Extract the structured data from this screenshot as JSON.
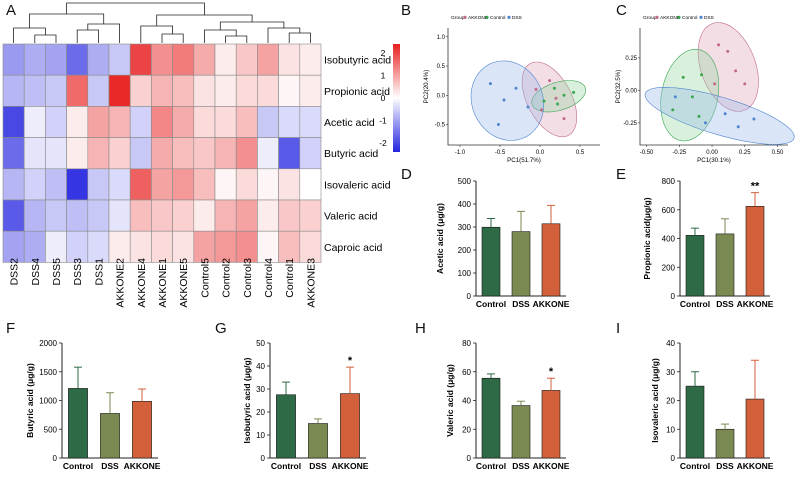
{
  "panel_labels": {
    "A": "A",
    "B": "B",
    "C": "C",
    "D": "D",
    "E": "E",
    "F": "F",
    "G": "G",
    "H": "H",
    "I": "I"
  },
  "colors": {
    "control": "#2d6a45",
    "dss": "#7a8a52",
    "akkone": "#d2603a",
    "heat_high": "#e81f1f",
    "heat_mid": "#ffffff",
    "heat_low": "#2323e0",
    "group_akkone": "#e0a0b8",
    "group_control": "#8fd49a",
    "group_dss": "#96b8e8"
  },
  "chart_data": [
    {
      "id": "A",
      "type": "heatmap",
      "columns": [
        "DSS2",
        "DSS4",
        "DSS5",
        "DSS3",
        "DSS1",
        "AKKONE2",
        "AKKONE4",
        "AKKONE1",
        "AKKONE5",
        "Control5",
        "Control2",
        "Control3",
        "Control4",
        "Control1",
        "AKKONE3"
      ],
      "rows": [
        "Isobutyric acid",
        "Propionic acid",
        "Acetic acid",
        "Butyric acid",
        "Isovaleric acid",
        "Valeric acid",
        "Caproic acid"
      ],
      "values": [
        [
          -1.1,
          -0.9,
          -1.0,
          -1.6,
          -0.9,
          -0.6,
          2.0,
          1.2,
          1.4,
          0.9,
          0.2,
          0.6,
          1.0,
          0.3,
          0.2
        ],
        [
          -0.8,
          -0.7,
          -0.6,
          1.6,
          -0.6,
          2.3,
          0.5,
          0.8,
          0.7,
          0.3,
          0.2,
          0.4,
          0.4,
          0.1,
          0.2
        ],
        [
          -2.0,
          -0.2,
          -0.5,
          0.2,
          1.0,
          0.8,
          -0.5,
          1.3,
          0.9,
          0.4,
          0.4,
          0.7,
          -0.6,
          -0.4,
          -0.4
        ],
        [
          -1.6,
          -0.3,
          -0.3,
          0.2,
          0.8,
          0.5,
          -0.6,
          0.9,
          0.7,
          0.6,
          0.8,
          1.2,
          -0.2,
          -1.8,
          -0.5
        ],
        [
          -0.8,
          -0.5,
          -0.7,
          -2.2,
          -0.6,
          -0.4,
          1.7,
          1.0,
          1.1,
          0.7,
          0.1,
          0.4,
          0.1,
          0.3,
          0.0
        ],
        [
          -1.8,
          -0.8,
          -0.6,
          -0.7,
          -0.6,
          -0.3,
          0.7,
          0.6,
          0.5,
          0.2,
          0.8,
          1.0,
          0.2,
          0.6,
          0.5
        ],
        [
          -1.0,
          -0.9,
          -0.2,
          -0.5,
          -0.4,
          0.2,
          0.3,
          0.4,
          0.3,
          1.0,
          1.1,
          1.2,
          0.1,
          0.7,
          0.4
        ]
      ],
      "legend_ticks": [
        "2",
        "1",
        "0",
        "-1",
        "-2"
      ],
      "range": [
        -2.4,
        2.4
      ]
    },
    {
      "id": "B",
      "type": "scatter",
      "xlabel": "PC1(51.7%)",
      "ylabel": "PC2(20.4%)",
      "legend_title": "Group",
      "legend": [
        "AKKONE",
        "Control",
        "DSS"
      ],
      "xticks": [
        "-1.0",
        "-0.5",
        "0.0",
        "0.5"
      ],
      "yticks": [
        "1.0",
        "0.5",
        "0.0",
        "-0.5"
      ],
      "xlim": [
        -1.15,
        0.75
      ],
      "ylim": [
        -0.85,
        1.15
      ],
      "series": [
        {
          "name": "AKKONE",
          "points": [
            [
              0.02,
              -0.25
            ],
            [
              0.2,
              -0.05
            ],
            [
              -0.05,
              0.1
            ],
            [
              0.3,
              -0.4
            ],
            [
              0.12,
              0.25
            ]
          ]
        },
        {
          "name": "Control",
          "points": [
            [
              0.3,
              0.0
            ],
            [
              0.18,
              0.12
            ],
            [
              0.22,
              -0.15
            ],
            [
              0.42,
              0.05
            ],
            [
              0.05,
              -0.1
            ]
          ]
        },
        {
          "name": "DSS",
          "points": [
            [
              -0.62,
              0.2
            ],
            [
              -0.45,
              -0.08
            ],
            [
              -0.52,
              -0.5
            ],
            [
              -0.3,
              0.12
            ],
            [
              -0.15,
              -0.2
            ]
          ]
        }
      ]
    },
    {
      "id": "C",
      "type": "scatter",
      "xlabel": "PC1(30.1%)",
      "ylabel": "PC2(32.5%)",
      "legend_title": "Group",
      "legend": [
        "AKKONE",
        "Control",
        "DSS"
      ],
      "xticks": [
        "-0.50",
        "-0.25",
        "0.00",
        "0.25",
        "0.50"
      ],
      "yticks": [
        "0.25",
        "0.00",
        "-0.25"
      ],
      "xlim": [
        -0.55,
        0.58
      ],
      "ylim": [
        -0.42,
        0.48
      ],
      "series": [
        {
          "name": "AKKONE",
          "points": [
            [
              0.05,
              0.35
            ],
            [
              0.12,
              0.3
            ],
            [
              0.25,
              0.05
            ],
            [
              0.02,
              0.05
            ],
            [
              0.18,
              0.15
            ]
          ]
        },
        {
          "name": "Control",
          "points": [
            [
              -0.22,
              0.1
            ],
            [
              -0.15,
              -0.05
            ],
            [
              -0.3,
              -0.15
            ],
            [
              -0.08,
              0.12
            ],
            [
              -0.1,
              -0.2
            ]
          ]
        },
        {
          "name": "DSS",
          "points": [
            [
              -0.28,
              -0.05
            ],
            [
              0.32,
              -0.22
            ],
            [
              0.1,
              -0.18
            ],
            [
              -0.05,
              -0.25
            ],
            [
              0.2,
              -0.28
            ]
          ]
        }
      ]
    },
    {
      "id": "D",
      "type": "bar",
      "ylabel": "Acetic acid (μg/g)",
      "categories": [
        "Control",
        "DSS",
        "AKKONE"
      ],
      "values": [
        299,
        280,
        314
      ],
      "errors": [
        38,
        88,
        80
      ],
      "ylim": [
        0,
        500
      ],
      "yticks": [
        0,
        100,
        200,
        300,
        400,
        500
      ],
      "annotations": [
        "",
        "",
        ""
      ]
    },
    {
      "id": "E",
      "type": "bar",
      "ylabel": "Propionic acid(μg/g)",
      "categories": [
        "Control",
        "DSS",
        "AKKONE"
      ],
      "values": [
        422,
        432,
        624
      ],
      "errors": [
        50,
        105,
        95
      ],
      "ylim": [
        0,
        800
      ],
      "yticks": [
        0,
        200,
        400,
        600,
        800
      ],
      "annotations": [
        "",
        "",
        "**"
      ]
    },
    {
      "id": "F",
      "type": "bar",
      "ylabel": "Butyric acid (μg/g)",
      "categories": [
        "Control",
        "DSS",
        "AKKONE"
      ],
      "values": [
        1210,
        775,
        985
      ],
      "errors": [
        370,
        360,
        215
      ],
      "ylim": [
        0,
        2000
      ],
      "yticks": [
        0,
        500,
        1000,
        1500,
        2000
      ],
      "annotations": [
        "",
        "",
        ""
      ]
    },
    {
      "id": "G",
      "type": "bar",
      "ylabel": "Isobutyric acid (μg/g)",
      "categories": [
        "Control",
        "DSS",
        "AKKONE"
      ],
      "values": [
        27.5,
        15,
        28
      ],
      "errors": [
        5.5,
        2,
        11.5
      ],
      "ylim": [
        0,
        50
      ],
      "yticks": [
        0,
        10,
        20,
        30,
        40,
        50
      ],
      "annotations": [
        "",
        "",
        "*"
      ]
    },
    {
      "id": "H",
      "type": "bar",
      "ylabel": "Valeric acid (μg/g)",
      "categories": [
        "Control",
        "DSS",
        "AKKONE"
      ],
      "values": [
        55.5,
        36.5,
        47
      ],
      "errors": [
        3,
        3,
        8.5
      ],
      "ylim": [
        0,
        80
      ],
      "yticks": [
        0,
        20,
        40,
        60,
        80
      ],
      "annotations": [
        "",
        "",
        "*"
      ]
    },
    {
      "id": "I",
      "type": "bar",
      "ylabel": "Isovaleric acid (μg/g)",
      "categories": [
        "Control",
        "DSS",
        "AKKONE"
      ],
      "values": [
        25,
        10,
        20.5
      ],
      "errors": [
        5,
        1.8,
        13.5
      ],
      "ylim": [
        0,
        40
      ],
      "yticks": [
        0,
        10,
        20,
        30,
        40
      ],
      "annotations": [
        "",
        "",
        ""
      ]
    }
  ]
}
